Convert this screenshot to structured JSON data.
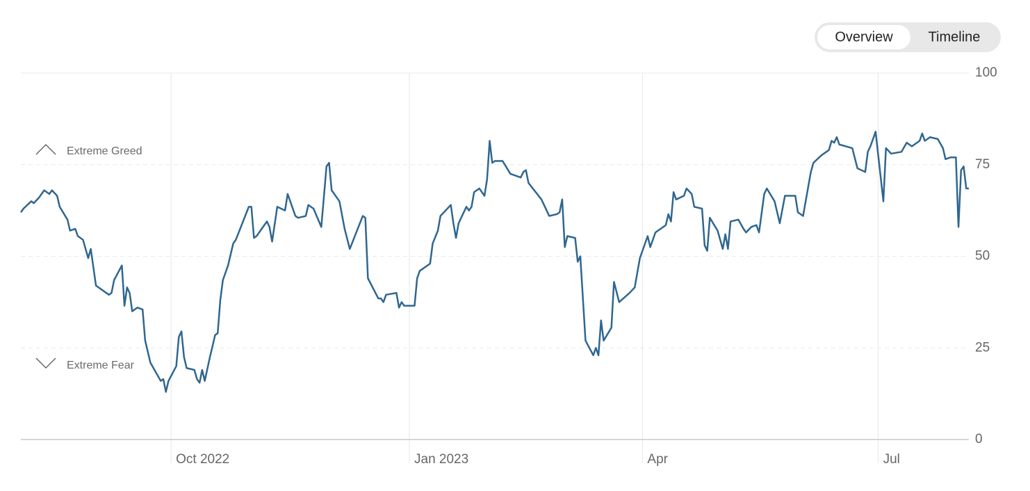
{
  "controls": {
    "tabs": [
      "Overview",
      "Timeline"
    ],
    "selected": 0
  },
  "chart_data": {
    "type": "line",
    "color": "#2f6690",
    "annotations": [
      "Extreme Greed",
      "Extreme Fear"
    ],
    "xlim": [
      0,
      366
    ],
    "xticks": [
      {
        "value": 58,
        "label": "Oct 2022"
      },
      {
        "value": 150,
        "label": "Jan 2023"
      },
      {
        "value": 240,
        "label": "Apr"
      },
      {
        "value": 331,
        "label": "Jul"
      }
    ],
    "ylim": [
      0,
      100
    ],
    "yticks": [
      0,
      25,
      50,
      75,
      100
    ],
    "grid": true,
    "x": [
      0,
      1,
      4,
      5,
      7,
      9,
      11,
      12,
      14,
      15,
      18,
      19,
      21,
      22,
      24,
      26,
      27,
      29,
      32,
      34,
      35,
      36,
      39,
      40,
      41,
      42,
      43,
      45,
      47,
      48,
      50,
      54,
      55,
      56,
      57,
      60,
      61,
      62,
      63,
      64,
      67,
      68,
      69,
      70,
      71,
      73,
      75,
      76,
      77,
      78,
      80,
      82,
      83,
      88,
      89,
      90,
      91,
      95,
      96,
      97,
      99,
      102,
      103,
      104,
      106,
      107,
      110,
      111,
      113,
      116,
      118,
      119,
      120,
      123,
      125,
      127,
      132,
      133,
      134,
      138,
      139,
      140,
      141,
      145,
      146,
      147,
      148,
      152,
      153,
      154,
      158,
      159,
      161,
      162,
      166,
      167,
      168,
      169,
      172,
      173,
      174,
      175,
      177,
      179,
      180,
      181,
      182,
      183,
      186,
      189,
      193,
      194,
      195,
      196,
      201,
      204,
      207,
      208,
      209,
      210,
      211,
      214,
      215,
      216,
      218,
      221,
      222,
      223,
      224,
      225,
      228,
      229,
      231,
      235,
      237,
      239,
      242,
      243,
      245,
      249,
      250,
      251,
      252,
      253,
      256,
      257,
      259,
      260,
      263,
      264,
      265,
      266,
      269,
      271,
      272,
      273,
      274,
      277,
      279,
      280,
      282,
      284,
      285,
      287,
      288,
      291,
      293,
      295,
      299,
      300,
      302,
      305,
      306,
      309,
      310,
      312,
      313,
      314,
      315,
      316,
      321,
      323,
      326,
      327,
      328,
      330,
      333,
      334,
      336,
      340,
      342,
      344,
      347,
      348,
      349,
      351,
      354,
      356,
      357,
      359,
      361,
      362,
      363,
      364,
      365,
      366
    ],
    "values": [
      62,
      63,
      65,
      64.5,
      66,
      68,
      67,
      68,
      66.5,
      63.5,
      60,
      57,
      57.5,
      55.5,
      54.5,
      49.5,
      52,
      42,
      40.5,
      39.5,
      40,
      43.5,
      47.5,
      36.5,
      41.5,
      40,
      35,
      36,
      35.5,
      27,
      21,
      16,
      16.5,
      13,
      16,
      20,
      28,
      29.5,
      22.5,
      19.5,
      19,
      16.5,
      15.5,
      19,
      16,
      22.5,
      28.5,
      29,
      38,
      43.5,
      47.5,
      53.5,
      54.5,
      63.5,
      63.5,
      55,
      55.5,
      59.5,
      58,
      54,
      63.5,
      62.5,
      67,
      65,
      61,
      60.5,
      61,
      64,
      63,
      58,
      74.5,
      75.5,
      68,
      65,
      57.5,
      52,
      61,
      60.5,
      44,
      38.5,
      38.5,
      37.5,
      39.5,
      40,
      36,
      37.5,
      36.5,
      36.5,
      44,
      46,
      48,
      53.5,
      57,
      61,
      64,
      59,
      55,
      59,
      63.5,
      62.5,
      63.5,
      67.5,
      68.5,
      66.5,
      71,
      81.5,
      75.5,
      76,
      76,
      72.5,
      71.5,
      73,
      73.5,
      70,
      65.5,
      61,
      61.5,
      62,
      65.5,
      52.5,
      55.5,
      55,
      48.5,
      50,
      27,
      23,
      25,
      23,
      32.5,
      27,
      30.5,
      43,
      37.5,
      40,
      41.5,
      49.5,
      55.5,
      52.5,
      56.5,
      58.5,
      61.5,
      59.5,
      67.5,
      65.5,
      66.5,
      68.5,
      67,
      63.5,
      63,
      53,
      51.5,
      60.5,
      57,
      52,
      56,
      52,
      59.5,
      60,
      57.5,
      56.5,
      58,
      58.5,
      56.5,
      67,
      68.5,
      65,
      59,
      66.5,
      66.5,
      62,
      61,
      73,
      75.5,
      77.5,
      78,
      79,
      81.5,
      81,
      82.5,
      80.5,
      79.5,
      74,
      73,
      78.5,
      80,
      84,
      65,
      79.5,
      78,
      78.5,
      81,
      80,
      81.5,
      83.5,
      81.5,
      82.5,
      82,
      79.5,
      76.5,
      77,
      77,
      58,
      73.5,
      74.5,
      68.5,
      68.5
    ]
  }
}
